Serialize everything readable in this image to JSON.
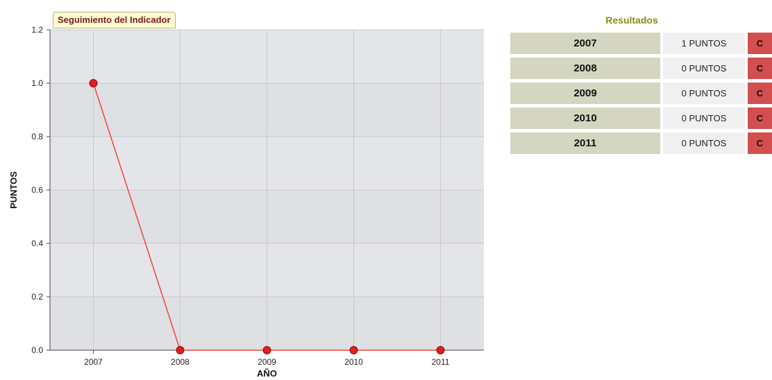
{
  "chart_data": {
    "type": "line",
    "title": "Seguimiento del Indicador",
    "xlabel": "AÑO",
    "ylabel": "PUNTOS",
    "categories": [
      "2007",
      "2008",
      "2009",
      "2010",
      "2011"
    ],
    "series": [
      {
        "values": [
          1,
          0,
          0,
          0,
          0
        ]
      }
    ],
    "ylim": [
      0,
      1.2
    ],
    "yticks": [
      "0.0",
      "0.2",
      "0.4",
      "0.6",
      "0.8",
      "1.0",
      "1.2"
    ],
    "grid": true,
    "colors": {
      "line": "#f0423a",
      "marker": "#e01e1e",
      "plot_bg": "#e3e5e8",
      "band": "#dfe0e3"
    }
  },
  "results": {
    "title": "Resultados",
    "rows": [
      {
        "year": "2007",
        "points": "1 PUNTOS",
        "badge": "C"
      },
      {
        "year": "2008",
        "points": "0 PUNTOS",
        "badge": "C"
      },
      {
        "year": "2009",
        "points": "0 PUNTOS",
        "badge": "C"
      },
      {
        "year": "2010",
        "points": "0 PUNTOS",
        "badge": "C"
      },
      {
        "year": "2011",
        "points": "0 PUNTOS",
        "badge": "C"
      }
    ]
  }
}
